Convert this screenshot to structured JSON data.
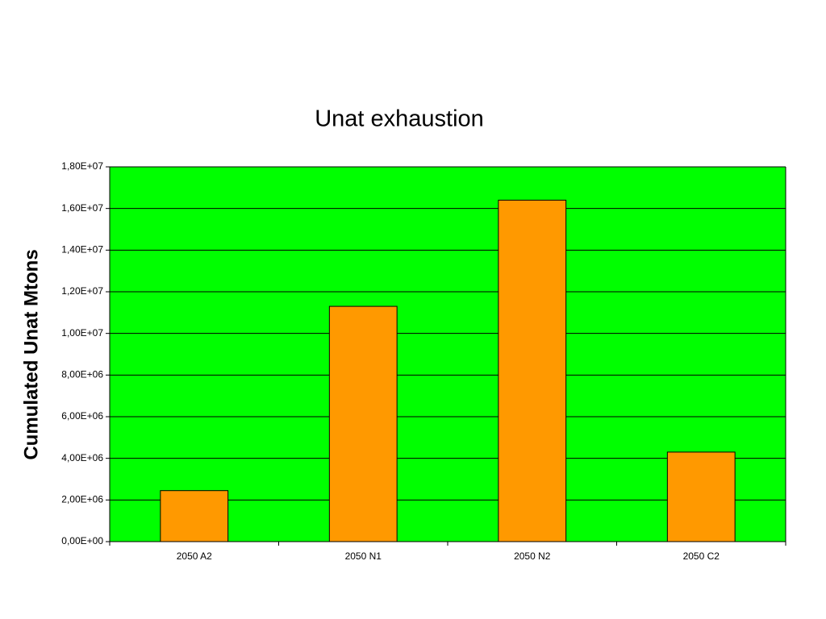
{
  "chart_data": {
    "type": "bar",
    "title": "Unat exhaustion",
    "y_label": "Cumulated Unat Mtons",
    "categories": [
      "2050 A2",
      "2050 N1",
      "2050 N2",
      "2050 C2"
    ],
    "values": [
      2450000,
      11300000,
      16400000,
      4300000
    ],
    "color": "#ff9900",
    "plot_background": "#00ff00",
    "grid": true,
    "ylim": [
      0,
      18000000
    ],
    "yticks": [
      {
        "value": 0,
        "label": "0,00E+00"
      },
      {
        "value": 2000000,
        "label": "2,00E+06"
      },
      {
        "value": 4000000,
        "label": "4,00E+06"
      },
      {
        "value": 6000000,
        "label": "6,00E+06"
      },
      {
        "value": 8000000,
        "label": "8,00E+06"
      },
      {
        "value": 10000000,
        "label": "1,00E+07"
      },
      {
        "value": 12000000,
        "label": "1,20E+07"
      },
      {
        "value": 14000000,
        "label": "1,40E+07"
      },
      {
        "value": 16000000,
        "label": "1,60E+07"
      },
      {
        "value": 18000000,
        "label": "1,80E+07"
      }
    ]
  }
}
